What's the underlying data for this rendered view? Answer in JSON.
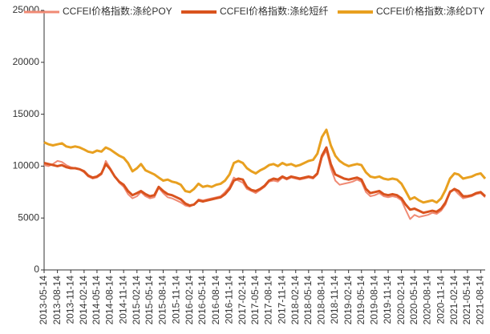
{
  "chart_data": {
    "type": "line",
    "x": [
      "2013-05-14",
      "2013-06-14",
      "2013-07-14",
      "2013-08-14",
      "2013-09-14",
      "2013-10-14",
      "2013-11-14",
      "2013-12-14",
      "2014-01-14",
      "2014-02-14",
      "2014-03-14",
      "2014-04-14",
      "2014-05-14",
      "2014-06-14",
      "2014-07-14",
      "2014-08-14",
      "2014-09-14",
      "2014-10-14",
      "2014-11-14",
      "2014-12-14",
      "2015-01-14",
      "2015-02-14",
      "2015-03-14",
      "2015-04-14",
      "2015-05-14",
      "2015-06-14",
      "2015-07-14",
      "2015-08-14",
      "2015-09-14",
      "2015-10-14",
      "2015-11-14",
      "2015-12-14",
      "2016-01-14",
      "2016-02-14",
      "2016-03-14",
      "2016-04-14",
      "2016-05-14",
      "2016-06-14",
      "2016-07-14",
      "2016-08-14",
      "2016-09-14",
      "2016-10-14",
      "2016-11-14",
      "2016-12-14",
      "2017-01-14",
      "2017-02-14",
      "2017-03-14",
      "2017-04-14",
      "2017-05-14",
      "2017-06-14",
      "2017-07-14",
      "2017-08-14",
      "2017-09-14",
      "2017-10-14",
      "2017-11-14",
      "2017-12-14",
      "2018-01-14",
      "2018-02-14",
      "2018-03-14",
      "2018-04-14",
      "2018-05-14",
      "2018-06-14",
      "2018-07-14",
      "2018-08-14",
      "2018-09-14",
      "2018-10-14",
      "2018-11-14",
      "2018-12-14",
      "2019-01-14",
      "2019-02-14",
      "2019-03-14",
      "2019-04-14",
      "2019-05-14",
      "2019-06-14",
      "2019-07-14",
      "2019-08-14",
      "2019-09-14",
      "2019-10-14",
      "2019-11-14",
      "2019-12-14",
      "2020-01-14",
      "2020-02-14",
      "2020-03-14",
      "2020-04-14",
      "2020-05-14",
      "2020-06-14",
      "2020-07-14",
      "2020-08-14",
      "2020-09-14",
      "2020-10-14",
      "2020-11-14",
      "2020-12-14",
      "2021-01-14",
      "2021-02-14",
      "2021-03-14",
      "2021-04-14",
      "2021-05-14",
      "2021-06-14",
      "2021-07-14",
      "2021-08-14",
      "2021-09-14"
    ],
    "series": [
      {
        "name": "CCFEI价格指数:涤纶POY",
        "color": "#f08a74",
        "width": 2,
        "values": [
          10100,
          10000,
          10200,
          10500,
          10400,
          10100,
          9900,
          9800,
          9700,
          9400,
          9000,
          8800,
          8900,
          9200,
          10500,
          9800,
          9000,
          8400,
          8000,
          7300,
          6900,
          7100,
          7500,
          7100,
          6900,
          7000,
          7900,
          7400,
          7000,
          6900,
          6700,
          6500,
          6200,
          6100,
          6300,
          6800,
          6700,
          6800,
          6900,
          7000,
          7100,
          7500,
          8000,
          8900,
          8600,
          8400,
          7800,
          7600,
          7400,
          7700,
          8000,
          8500,
          8600,
          8500,
          8900,
          8700,
          8900,
          8800,
          8700,
          8800,
          8900,
          8800,
          9200,
          10800,
          11500,
          9800,
          8600,
          8200,
          8300,
          8400,
          8500,
          8700,
          8500,
          7500,
          7100,
          7200,
          7400,
          7100,
          7000,
          7100,
          7000,
          6700,
          5800,
          4900,
          5300,
          5100,
          5200,
          5300,
          5500,
          5400,
          5700,
          6300,
          7600,
          7700,
          7300,
          6900,
          7000,
          7100,
          7300,
          7400,
          7000
        ]
      },
      {
        "name": "CCFEI价格指数:涤纶短纤",
        "color": "#d9531e",
        "width": 3,
        "values": [
          10300,
          10200,
          10100,
          10000,
          10100,
          9900,
          9800,
          9800,
          9700,
          9500,
          9100,
          8900,
          9000,
          9300,
          10200,
          9700,
          9000,
          8500,
          8200,
          7600,
          7200,
          7400,
          7600,
          7300,
          7100,
          7200,
          8000,
          7600,
          7300,
          7200,
          7000,
          6800,
          6400,
          6200,
          6300,
          6700,
          6600,
          6700,
          6800,
          6900,
          7000,
          7300,
          7800,
          8600,
          8800,
          8700,
          8000,
          7700,
          7600,
          7800,
          8100,
          8600,
          8800,
          8700,
          9000,
          8800,
          9000,
          8900,
          8800,
          8900,
          9000,
          8900,
          9300,
          11000,
          11800,
          10200,
          9200,
          9000,
          8800,
          8700,
          8800,
          8900,
          8700,
          7800,
          7400,
          7500,
          7600,
          7300,
          7200,
          7300,
          7200,
          6900,
          6300,
          5800,
          5900,
          5700,
          5500,
          5600,
          5700,
          5600,
          5900,
          6500,
          7500,
          7800,
          7600,
          7100,
          7100,
          7200,
          7400,
          7500,
          7100
        ]
      },
      {
        "name": "CCFEI价格指数:涤纶DTY",
        "color": "#e8a020",
        "width": 3,
        "values": [
          12300,
          12100,
          12000,
          12100,
          12200,
          11900,
          11800,
          11900,
          11800,
          11600,
          11400,
          11300,
          11500,
          11400,
          11800,
          11600,
          11300,
          11000,
          10800,
          10300,
          9500,
          9800,
          10200,
          9600,
          9400,
          9200,
          8900,
          8600,
          8700,
          8500,
          8400,
          8200,
          7600,
          7500,
          7800,
          8300,
          8000,
          8100,
          8000,
          8200,
          8300,
          8600,
          9200,
          10300,
          10500,
          10300,
          9800,
          9500,
          9300,
          9600,
          9800,
          10100,
          10200,
          10000,
          10300,
          10100,
          10200,
          10000,
          10100,
          10300,
          10500,
          10600,
          11200,
          12800,
          13500,
          12000,
          11000,
          10500,
          10200,
          10000,
          10100,
          10200,
          10100,
          9400,
          9000,
          8900,
          9000,
          8800,
          8700,
          8800,
          8700,
          8300,
          7600,
          6800,
          7000,
          6700,
          6500,
          6600,
          6700,
          6500,
          6900,
          7700,
          8800,
          9300,
          9200,
          8800,
          8900,
          9000,
          9200,
          9300,
          8800
        ]
      }
    ],
    "xlim": [
      "2013-05-14",
      "2021-09-14"
    ],
    "xticks": [
      "2013-05-14",
      "2013-08-14",
      "2013-11-14",
      "2014-02-14",
      "2014-05-14",
      "2014-08-14",
      "2014-11-14",
      "2015-02-14",
      "2015-05-14",
      "2015-08-14",
      "2015-11-14",
      "2016-02-14",
      "2016-05-14",
      "2016-08-14",
      "2016-11-14",
      "2017-02-14",
      "2017-05-14",
      "2017-08-14",
      "2017-11-14",
      "2018-02-14",
      "2018-05-14",
      "2018-08-14",
      "2018-11-14",
      "2019-02-14",
      "2019-05-14",
      "2019-08-14",
      "2019-11-14",
      "2020-02-14",
      "2020-05-14",
      "2020-08-14",
      "2020-11-14",
      "2021-02-14",
      "2021-05-14",
      "2021-08-14"
    ],
    "ylim": [
      0,
      25000
    ],
    "yticks": [
      0,
      5000,
      10000,
      15000,
      20000,
      25000
    ],
    "grid": false,
    "legend": "top"
  }
}
